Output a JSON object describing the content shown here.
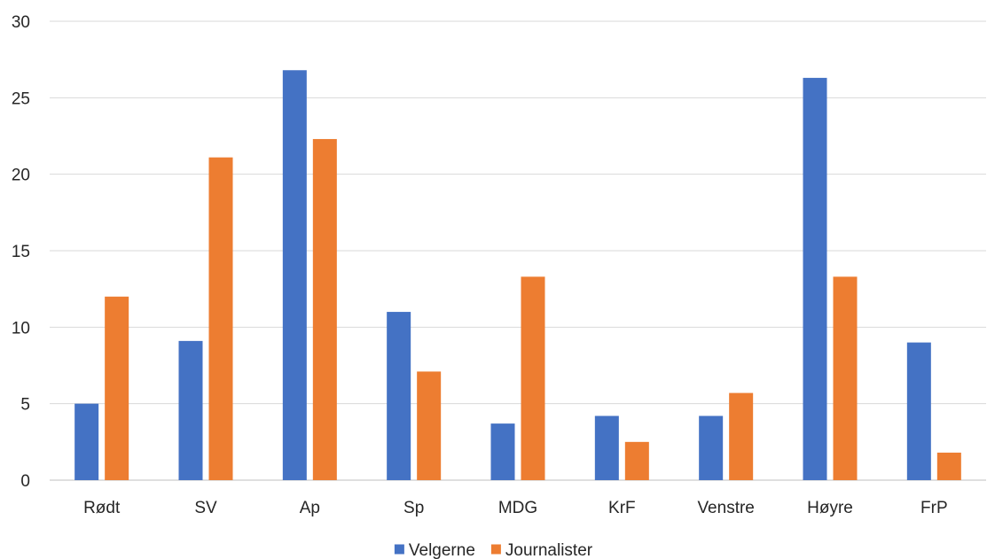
{
  "chart_data": {
    "type": "bar",
    "categories": [
      "Rødt",
      "SV",
      "Ap",
      "Sp",
      "MDG",
      "KrF",
      "Venstre",
      "Høyre",
      "FrP"
    ],
    "series": [
      {
        "name": "Velgerne",
        "color": "#4472c4",
        "values": [
          5.0,
          9.1,
          26.8,
          11.0,
          3.7,
          4.2,
          4.2,
          26.3,
          9.0
        ]
      },
      {
        "name": "Journalister",
        "color": "#ed7d31",
        "values": [
          12.0,
          21.1,
          22.3,
          7.1,
          13.3,
          2.5,
          5.7,
          13.3,
          1.8
        ]
      }
    ],
    "y_ticks": [
      "0",
      "5",
      "10",
      "15",
      "20",
      "25",
      "30"
    ],
    "ylim": [
      0,
      30
    ],
    "title": "",
    "xlabel": "",
    "ylabel": "",
    "grid": true,
    "legend_position": "bottom"
  }
}
